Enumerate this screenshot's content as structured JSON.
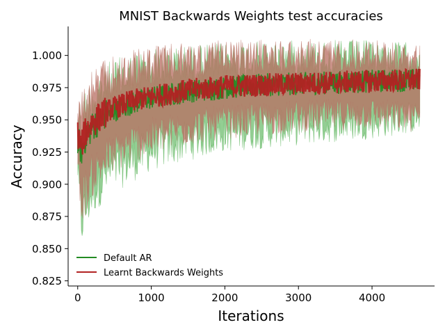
{
  "chart_data": {
    "type": "line",
    "title": "MNIST Backwards Weights test accuracies",
    "xlabel": "Iterations",
    "ylabel": "Accuracy",
    "xlim": [
      -130,
      4850
    ],
    "ylim": [
      0.821,
      1.0225
    ],
    "xticks": [
      0,
      1000,
      2000,
      3000,
      4000
    ],
    "xtick_labels": [
      "0",
      "1000",
      "2000",
      "3000",
      "4000"
    ],
    "yticks": [
      0.825,
      0.85,
      0.875,
      0.9,
      0.925,
      0.95,
      0.975,
      1.0
    ],
    "ytick_labels": [
      "0.825",
      "0.850",
      "0.875",
      "0.900",
      "0.925",
      "0.950",
      "0.975",
      "1.000"
    ],
    "grid": false,
    "legend_position": "bottom-left",
    "x_end": 4650,
    "series": [
      {
        "name": "Default AR",
        "color": "#228B22",
        "band_color": "#59b359",
        "points": [
          [
            0,
            0.935
          ],
          [
            50,
            0.925
          ],
          [
            100,
            0.935
          ],
          [
            200,
            0.945
          ],
          [
            400,
            0.955
          ],
          [
            700,
            0.962
          ],
          [
            1000,
            0.967
          ],
          [
            1500,
            0.972
          ],
          [
            2000,
            0.975
          ],
          [
            2500,
            0.977
          ],
          [
            3000,
            0.978
          ],
          [
            3500,
            0.979
          ],
          [
            4000,
            0.98
          ],
          [
            4650,
            0.981
          ]
        ],
        "band_low": [
          [
            0,
            0.9
          ],
          [
            50,
            0.85
          ],
          [
            100,
            0.86
          ],
          [
            200,
            0.875
          ],
          [
            400,
            0.89
          ],
          [
            700,
            0.9
          ],
          [
            1000,
            0.91
          ],
          [
            1500,
            0.918
          ],
          [
            2000,
            0.925
          ],
          [
            3000,
            0.93
          ],
          [
            4000,
            0.935
          ],
          [
            4650,
            0.94
          ]
        ],
        "band_high": [
          [
            0,
            0.965
          ],
          [
            50,
            0.97
          ],
          [
            100,
            0.975
          ],
          [
            200,
            0.985
          ],
          [
            400,
            0.995
          ],
          [
            700,
            1.002
          ],
          [
            1000,
            1.006
          ],
          [
            1500,
            1.008
          ],
          [
            2000,
            1.01
          ],
          [
            3000,
            1.012
          ],
          [
            4000,
            1.012
          ],
          [
            4650,
            1.01
          ]
        ]
      },
      {
        "name": "Learnt Backwards Weights",
        "color": "#B22222",
        "band_color": "#b86e62",
        "points": [
          [
            0,
            0.938
          ],
          [
            50,
            0.93
          ],
          [
            100,
            0.94
          ],
          [
            200,
            0.948
          ],
          [
            400,
            0.957
          ],
          [
            700,
            0.964
          ],
          [
            1000,
            0.968
          ],
          [
            1500,
            0.973
          ],
          [
            2000,
            0.976
          ],
          [
            2500,
            0.977
          ],
          [
            3000,
            0.978
          ],
          [
            3500,
            0.979
          ],
          [
            4000,
            0.98
          ],
          [
            4650,
            0.981
          ]
        ],
        "band_low": [
          [
            0,
            0.91
          ],
          [
            50,
            0.87
          ],
          [
            100,
            0.875
          ],
          [
            200,
            0.89
          ],
          [
            400,
            0.905
          ],
          [
            700,
            0.915
          ],
          [
            1000,
            0.922
          ],
          [
            1500,
            0.93
          ],
          [
            2000,
            0.935
          ],
          [
            3000,
            0.94
          ],
          [
            4000,
            0.943
          ],
          [
            4650,
            0.94
          ]
        ],
        "band_high": [
          [
            0,
            0.97
          ],
          [
            50,
            0.975
          ],
          [
            100,
            0.98
          ],
          [
            200,
            0.99
          ],
          [
            400,
            0.998
          ],
          [
            700,
            1.004
          ],
          [
            1000,
            1.008
          ],
          [
            1500,
            1.01
          ],
          [
            2000,
            1.012
          ],
          [
            3000,
            1.013
          ],
          [
            4000,
            1.013
          ],
          [
            4650,
            1.008
          ]
        ]
      }
    ]
  }
}
